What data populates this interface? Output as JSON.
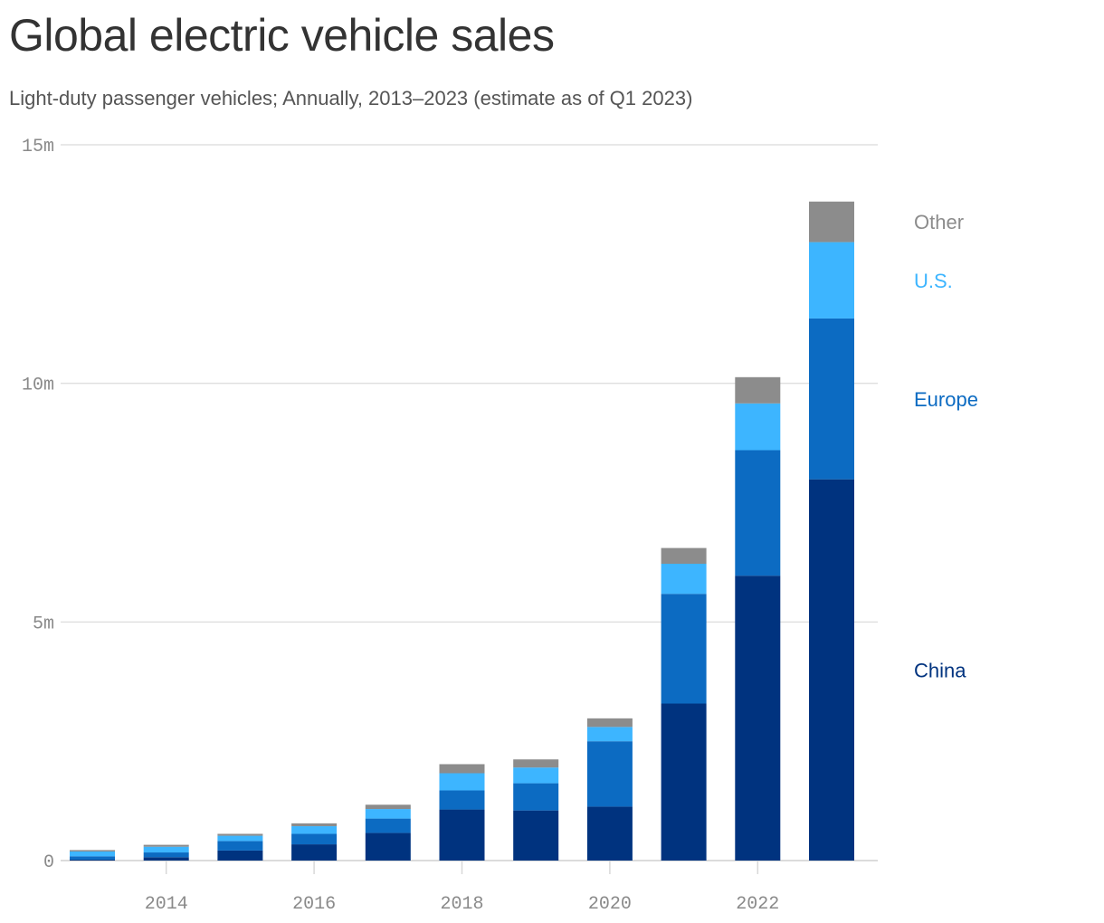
{
  "chart_data": {
    "type": "bar",
    "stacked": true,
    "title": "Global electric vehicle sales",
    "subtitle": "Light-duty passenger vehicles; Annually, 2013–2023 (estimate as of Q1 2023)",
    "xlabel": "",
    "ylabel": "",
    "categories": [
      2013,
      2014,
      2015,
      2016,
      2017,
      2018,
      2019,
      2020,
      2021,
      2022,
      2023
    ],
    "x_tick_labels": [
      "2014",
      "2016",
      "2018",
      "2020",
      "2022"
    ],
    "x_tick_values": [
      2014,
      2016,
      2018,
      2020,
      2022
    ],
    "y_tick_labels": [
      "0",
      "5m",
      "10m",
      "15m"
    ],
    "y_tick_values": [
      0,
      5,
      10,
      15
    ],
    "ylim": [
      0,
      15
    ],
    "y_unit": "millions",
    "grid": "horizontal",
    "legend": "direct labels right of the last bar",
    "series": [
      {
        "name": "China",
        "color": "#00337f",
        "values": [
          0.02,
          0.07,
          0.21,
          0.34,
          0.58,
          1.07,
          1.05,
          1.13,
          3.29,
          5.97,
          7.99
        ]
      },
      {
        "name": "Europe",
        "color": "#0c6bc2",
        "values": [
          0.07,
          0.1,
          0.2,
          0.22,
          0.3,
          0.4,
          0.57,
          1.37,
          2.3,
          2.63,
          3.37
        ]
      },
      {
        "name": "U.S.",
        "color": "#3db5ff",
        "values": [
          0.1,
          0.12,
          0.11,
          0.16,
          0.2,
          0.36,
          0.33,
          0.3,
          0.63,
          0.98,
          1.6
        ]
      },
      {
        "name": "Other",
        "color": "#8c8c8c",
        "values": [
          0.03,
          0.04,
          0.04,
          0.06,
          0.09,
          0.19,
          0.17,
          0.18,
          0.33,
          0.55,
          0.85
        ]
      }
    ]
  }
}
